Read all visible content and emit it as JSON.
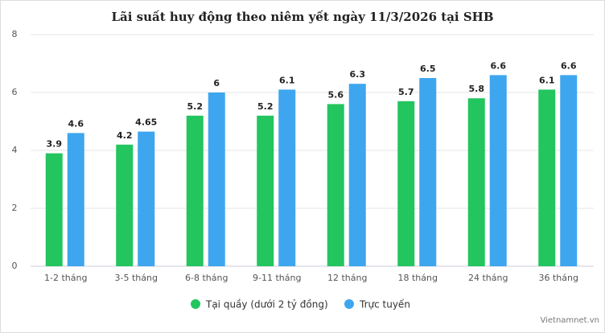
{
  "chart_data": {
    "type": "bar",
    "title": "Lãi suất huy động theo niêm yết ngày 11/3/2026 tại SHB",
    "categories": [
      "1-2 tháng",
      "3-5 tháng",
      "6-8 tháng",
      "9-11 tháng",
      "12 tháng",
      "18 tháng",
      "24 tháng",
      "36 tháng"
    ],
    "series": [
      {
        "name": "Tại quầy (dưới 2 tỷ đồng)",
        "color": "#22c55e",
        "values": [
          3.9,
          4.2,
          5.2,
          5.2,
          5.6,
          5.7,
          5.8,
          6.1
        ]
      },
      {
        "name": "Trực tuyến",
        "color": "#3ea6ee",
        "values": [
          4.6,
          4.65,
          6,
          6.1,
          6.3,
          6.5,
          6.6,
          6.6
        ]
      }
    ],
    "ylim": [
      0,
      8
    ],
    "yticks": [
      0,
      2,
      4,
      6,
      8
    ],
    "grid": true,
    "legend": "bottom",
    "source": "Vietnamnet.vn"
  }
}
